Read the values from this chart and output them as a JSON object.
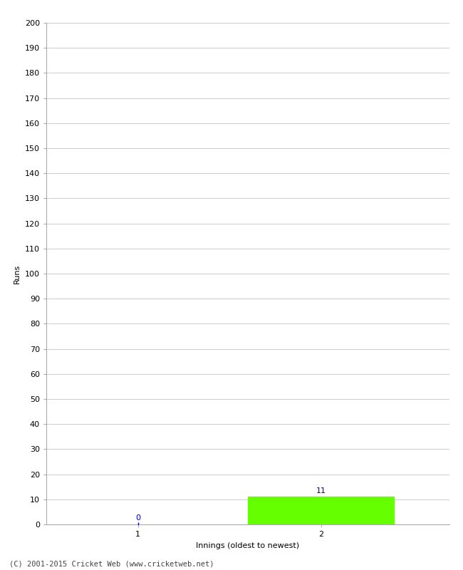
{
  "xlabel": "Innings (oldest to newest)",
  "ylabel": "Runs",
  "categories": [
    1,
    2
  ],
  "values": [
    0,
    11
  ],
  "bar_color": "#66ff00",
  "scatter_color": "#0000aa",
  "ylim": [
    0,
    200
  ],
  "xlim": [
    0.5,
    2.7
  ],
  "ytick_step": 10,
  "background_color": "#ffffff",
  "grid_color": "#cccccc",
  "annotation_color": "#0000aa",
  "footer": "(C) 2001-2015 Cricket Web (www.cricketweb.net)",
  "bar_width": 0.8
}
